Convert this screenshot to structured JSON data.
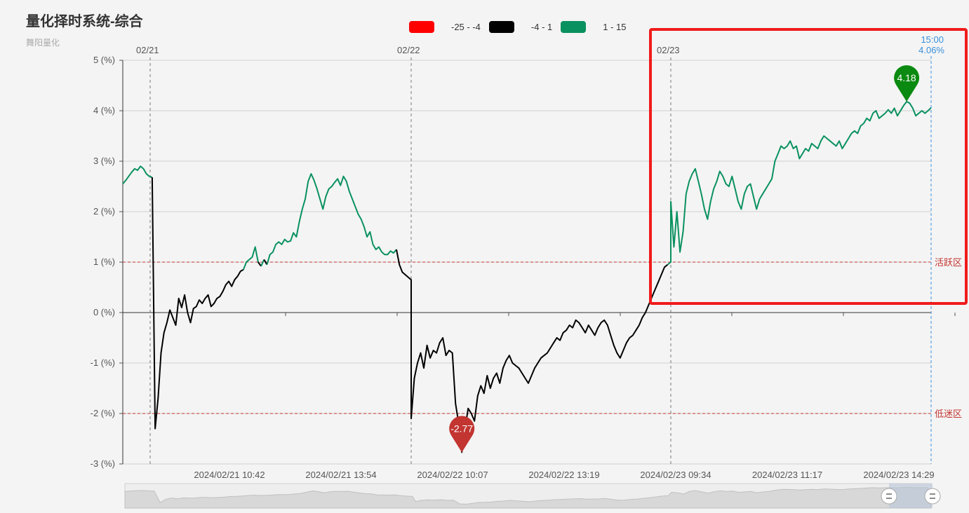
{
  "title": "量化择时系统-综合",
  "subtitle": "舞阳量化",
  "legend": [
    {
      "label": "-25 - -4",
      "color": "#ff0000"
    },
    {
      "label": "-4 - 1",
      "color": "#000000"
    },
    {
      "label": "1 - 15",
      "color": "#0a9160"
    }
  ],
  "chart_data": {
    "type": "line",
    "y_unit": "(%)",
    "ylim": [
      -3,
      5
    ],
    "y_ticks": [
      "5 (%)",
      "4 (%)",
      "3 (%)",
      "2 (%)",
      "1 (%)",
      "0 (%)",
      "-1 (%)",
      "-2 (%)",
      "-3 (%)"
    ],
    "x_ticks": [
      "2024/02/21 10:42",
      "2024/02/21 13:54",
      "2024/02/22 10:07",
      "2024/02/22 13:19",
      "2024/02/23 09:34",
      "2024/02/23 11:17",
      "2024/02/23 14:29"
    ],
    "day_labels": [
      "02/21",
      "02/22",
      "02/23"
    ],
    "grid": true,
    "thresholds": [
      {
        "value": 1,
        "label": "活跃区",
        "color": "#c23531"
      },
      {
        "value": -2,
        "label": "低迷区",
        "color": "#c23531"
      }
    ],
    "color_ranges": [
      {
        "min": -25,
        "max": -4,
        "color": "#ff0000"
      },
      {
        "min": -4,
        "max": 1,
        "color": "#000000"
      },
      {
        "min": 1,
        "max": 15,
        "color": "#0a9160"
      }
    ],
    "markers": [
      {
        "label": "4.18",
        "value": 4.18,
        "type": "max",
        "color": "#0a8a10"
      },
      {
        "label": "-2.77",
        "value": -2.77,
        "type": "min",
        "color": "#c23531"
      }
    ],
    "cursor": {
      "time": "15:00",
      "value": "4.06%"
    },
    "series": [
      {
        "segments": [
          {
            "day": "02/21",
            "values": [
              2.55,
              2.62,
              2.7,
              2.78,
              2.85,
              2.82,
              2.9,
              2.85,
              2.75,
              2.7,
              2.68,
              -2.3,
              -1.7,
              -0.8,
              -0.4,
              -0.2,
              0.05,
              -0.1,
              -0.25,
              0.28,
              0.1,
              0.35,
              0.0,
              -0.2,
              0.08,
              0.12,
              0.25,
              0.18,
              0.28,
              0.35,
              0.12,
              0.18,
              0.28,
              0.32,
              0.42,
              0.55,
              0.62,
              0.52,
              0.65,
              0.72,
              0.82,
              0.85,
              1.0,
              1.05,
              1.1,
              1.3,
              1.0,
              0.92,
              1.05,
              0.95,
              1.15,
              1.2,
              1.35,
              1.4,
              1.35,
              1.45,
              1.4,
              1.42,
              1.58,
              1.5,
              1.8,
              2.05,
              2.25,
              2.6,
              2.75,
              2.62,
              2.45,
              2.25,
              2.05,
              2.3,
              2.45,
              2.5,
              2.58,
              2.65,
              2.52,
              2.7,
              2.6,
              2.4,
              2.25,
              2.1,
              1.95,
              1.85,
              1.7,
              1.5,
              1.6,
              1.35,
              1.25,
              1.3,
              1.2,
              1.15,
              1.15,
              1.22,
              1.18,
              1.25,
              0.95,
              0.8,
              0.75,
              0.7,
              0.65
            ]
          },
          {
            "day": "02/22",
            "values": [
              -2.1,
              -1.3,
              -1.0,
              -0.8,
              -1.1,
              -0.65,
              -0.9,
              -0.75,
              -0.8,
              -0.6,
              -0.5,
              -0.85,
              -0.75,
              -0.8,
              -1.8,
              -2.2,
              -2.77,
              -2.3,
              -1.9,
              -2.0,
              -2.15,
              -1.65,
              -1.45,
              -1.6,
              -1.25,
              -1.5,
              -1.3,
              -1.2,
              -1.4,
              -1.1,
              -0.95,
              -0.85,
              -1.0,
              -1.05,
              -1.1,
              -1.2,
              -1.3,
              -1.4,
              -1.25,
              -1.1,
              -1.0,
              -0.9,
              -0.85,
              -0.8,
              -0.7,
              -0.6,
              -0.5,
              -0.55,
              -0.4,
              -0.35,
              -0.25,
              -0.3,
              -0.15,
              -0.2,
              -0.3,
              -0.4,
              -0.25,
              -0.35,
              -0.45,
              -0.3,
              -0.2,
              -0.15,
              -0.25,
              -0.45,
              -0.65,
              -0.8,
              -0.9,
              -0.75,
              -0.6,
              -0.5,
              -0.45,
              -0.35,
              -0.25,
              -0.1,
              0.0,
              0.15,
              0.3,
              0.45,
              0.6,
              0.75,
              0.9,
              0.95,
              1.0
            ]
          },
          {
            "day": "02/23",
            "values": [
              2.2,
              1.3,
              2.0,
              1.2,
              1.6,
              2.35,
              2.6,
              2.75,
              2.85,
              2.6,
              2.35,
              2.05,
              1.85,
              2.2,
              2.45,
              2.6,
              2.8,
              2.7,
              2.55,
              2.5,
              2.7,
              2.45,
              2.2,
              2.05,
              2.35,
              2.5,
              2.55,
              2.3,
              2.05,
              2.25,
              2.35,
              2.45,
              2.55,
              2.65,
              3.0,
              3.15,
              3.3,
              3.25,
              3.3,
              3.4,
              3.25,
              3.3,
              3.05,
              3.15,
              3.25,
              3.2,
              3.35,
              3.3,
              3.25,
              3.4,
              3.5,
              3.45,
              3.4,
              3.35,
              3.3,
              3.4,
              3.25,
              3.35,
              3.45,
              3.55,
              3.6,
              3.55,
              3.7,
              3.75,
              3.85,
              3.8,
              3.95,
              4.0,
              3.85,
              3.9,
              3.95,
              4.02,
              3.95,
              4.05,
              3.9,
              4.0,
              4.1,
              4.18,
              4.15,
              4.05,
              3.9,
              3.95,
              4.0,
              3.95,
              4.0,
              4.06
            ]
          }
        ]
      }
    ]
  }
}
